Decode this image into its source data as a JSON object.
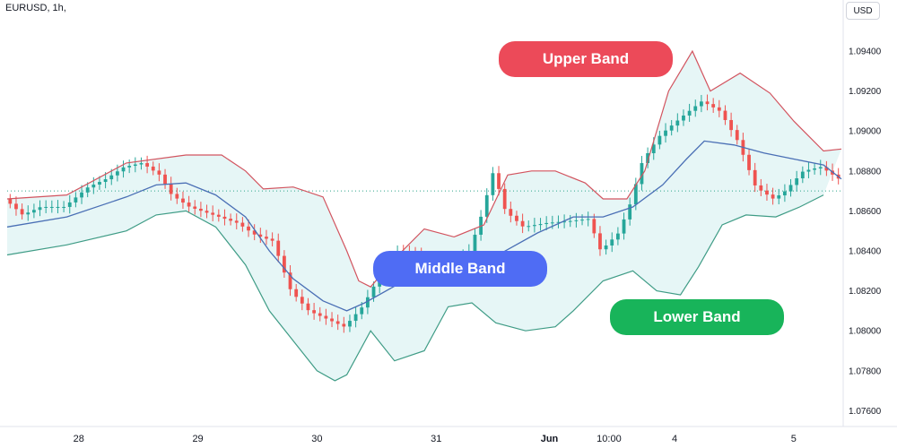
{
  "header": {
    "symbol": "EURUSD, 1h,",
    "currency": "USD"
  },
  "labels": {
    "upper": "Upper Band",
    "middle": "Middle Band",
    "lower": "Lower Band"
  },
  "colors": {
    "up": "#26a69a",
    "down": "#ef5350",
    "upper_band": "#d2545f",
    "middle_band": "#4a6fb5",
    "lower_band": "#3f9c86",
    "band_fill": "#e6f6f6",
    "reference": "#2fa58b"
  },
  "chart_data": {
    "type": "line",
    "title": "",
    "xlabel": "",
    "ylabel": "",
    "x_ticks": [
      "28",
      "29",
      "30",
      "31",
      "Jun",
      "10:00",
      "4",
      "5"
    ],
    "y_ticks": [
      1.076,
      1.078,
      1.08,
      1.082,
      1.084,
      1.086,
      1.088,
      1.09,
      1.092,
      1.094
    ],
    "y_tick_labels": [
      "1.07600",
      "1.07800",
      "1.08000",
      "1.08200",
      "1.08400",
      "1.08600",
      "1.08800",
      "1.09000",
      "1.09200",
      "1.09400"
    ],
    "ylim": [
      1.0753,
      1.0962
    ],
    "x_range": [
      0,
      140
    ],
    "x_tick_positions": [
      12,
      32,
      52,
      72,
      91,
      101,
      112,
      132
    ],
    "reference_level": 1.087,
    "grid": false,
    "series": [
      {
        "name": "Upper Band",
        "role": "upper",
        "points": [
          [
            0,
            1.0866
          ],
          [
            10,
            1.0868
          ],
          [
            20,
            1.0884
          ],
          [
            30,
            1.0888
          ],
          [
            36,
            1.0888
          ],
          [
            40,
            1.088
          ],
          [
            43,
            1.0871
          ],
          [
            48,
            1.0872
          ],
          [
            53,
            1.0867
          ],
          [
            57,
            1.084
          ],
          [
            59,
            1.0825
          ],
          [
            61,
            1.0822
          ],
          [
            65,
            1.0836
          ],
          [
            70,
            1.0851
          ],
          [
            75,
            1.0847
          ],
          [
            80,
            1.0853
          ],
          [
            84,
            1.0878
          ],
          [
            88,
            1.088
          ],
          [
            92,
            1.088
          ],
          [
            97,
            1.0874
          ],
          [
            100,
            1.0866
          ],
          [
            104,
            1.0866
          ],
          [
            107,
            1.088
          ],
          [
            111,
            1.092
          ],
          [
            115,
            1.094
          ],
          [
            118,
            1.092
          ],
          [
            123,
            1.0929
          ],
          [
            128,
            1.0919
          ],
          [
            132,
            1.0905
          ],
          [
            137,
            1.089
          ],
          [
            145,
            1.0891
          ]
        ]
      },
      {
        "name": "Middle Band",
        "role": "middle",
        "points": [
          [
            0,
            1.0852
          ],
          [
            10,
            1.0857
          ],
          [
            20,
            1.0867
          ],
          [
            25,
            1.0873
          ],
          [
            30,
            1.0874
          ],
          [
            35,
            1.0868
          ],
          [
            40,
            1.0857
          ],
          [
            44,
            1.084
          ],
          [
            48,
            1.0826
          ],
          [
            53,
            1.0815
          ],
          [
            57,
            1.081
          ],
          [
            60,
            1.0814
          ],
          [
            66,
            1.0824
          ],
          [
            71,
            1.0832
          ],
          [
            77,
            1.0833
          ],
          [
            83,
            1.0839
          ],
          [
            89,
            1.0849
          ],
          [
            95,
            1.0857
          ],
          [
            100,
            1.0857
          ],
          [
            105,
            1.0862
          ],
          [
            110,
            1.0873
          ],
          [
            114,
            1.0886
          ],
          [
            117,
            1.0895
          ],
          [
            122,
            1.0893
          ],
          [
            127,
            1.0889
          ],
          [
            132,
            1.0886
          ],
          [
            137,
            1.0883
          ],
          [
            145,
            1.0876
          ]
        ]
      },
      {
        "name": "Lower Band",
        "role": "lower",
        "points": [
          [
            0,
            1.0838
          ],
          [
            10,
            1.0843
          ],
          [
            20,
            1.085
          ],
          [
            25,
            1.0858
          ],
          [
            30,
            1.086
          ],
          [
            35,
            1.0852
          ],
          [
            40,
            1.0833
          ],
          [
            44,
            1.081
          ],
          [
            48,
            1.0795
          ],
          [
            52,
            1.078
          ],
          [
            55,
            1.0775
          ],
          [
            57,
            1.0778
          ],
          [
            61,
            1.08
          ],
          [
            65,
            1.0785
          ],
          [
            70,
            1.079
          ],
          [
            74,
            1.0812
          ],
          [
            78,
            1.0814
          ],
          [
            82,
            1.0804
          ],
          [
            87,
            1.08
          ],
          [
            92,
            1.0802
          ],
          [
            95,
            1.081
          ],
          [
            100,
            1.0825
          ],
          [
            105,
            1.083
          ],
          [
            109,
            1.082
          ],
          [
            113,
            1.0818
          ],
          [
            116,
            1.0832
          ],
          [
            120,
            1.0853
          ],
          [
            124,
            1.0858
          ],
          [
            129,
            1.0857
          ],
          [
            133,
            1.0862
          ],
          [
            137,
            1.0868
          ]
        ]
      },
      {
        "name": "",
        "role": "price",
        "points": [
          [
            0,
            1.0866
          ],
          [
            3,
            1.0858
          ],
          [
            6,
            1.0862
          ],
          [
            10,
            1.0862
          ],
          [
            14,
            1.0872
          ],
          [
            17,
            1.0876
          ],
          [
            20,
            1.0882
          ],
          [
            23,
            1.0884
          ],
          [
            26,
            1.0878
          ],
          [
            28,
            1.0868
          ],
          [
            31,
            1.0862
          ],
          [
            35,
            1.0858
          ],
          [
            39,
            1.0854
          ],
          [
            42,
            1.0848
          ],
          [
            45,
            1.0845
          ],
          [
            48,
            1.082
          ],
          [
            51,
            1.081
          ],
          [
            54,
            1.0806
          ],
          [
            57,
            1.0802
          ],
          [
            60,
            1.0812
          ],
          [
            63,
            1.0828
          ],
          [
            66,
            1.084
          ],
          [
            69,
            1.0838
          ],
          [
            72,
            1.083
          ],
          [
            75,
            1.0834
          ],
          [
            78,
            1.084
          ],
          [
            80,
            1.0858
          ],
          [
            82,
            1.088
          ],
          [
            84,
            1.086
          ],
          [
            87,
            1.0852
          ],
          [
            91,
            1.0854
          ],
          [
            95,
            1.0855
          ],
          [
            98,
            1.0856
          ],
          [
            100,
            1.084
          ],
          [
            103,
            1.0849
          ],
          [
            105,
            1.0864
          ],
          [
            107,
            1.0885
          ],
          [
            110,
            1.0898
          ],
          [
            114,
            1.0908
          ],
          [
            117,
            1.0915
          ],
          [
            120,
            1.091
          ],
          [
            123,
            1.0895
          ],
          [
            126,
            1.0872
          ],
          [
            129,
            1.0866
          ],
          [
            131,
            1.087
          ],
          [
            134,
            1.088
          ],
          [
            137,
            1.0882
          ],
          [
            140,
            1.0876
          ],
          [
            143,
            1.087
          ],
          [
            145,
            1.0864
          ]
        ]
      }
    ]
  }
}
